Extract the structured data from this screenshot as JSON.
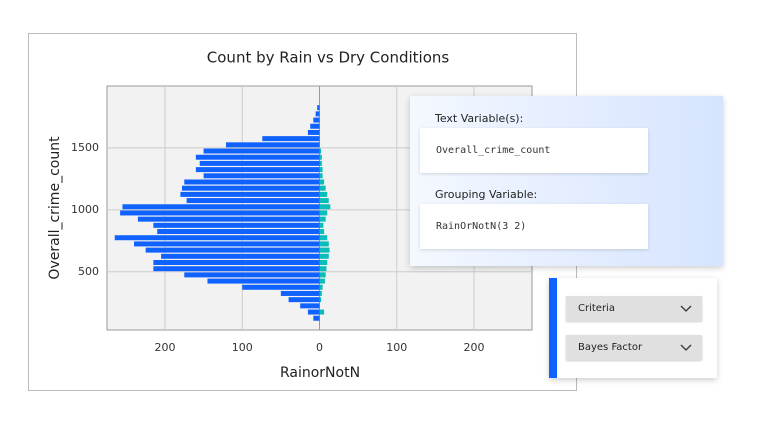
{
  "chart_data": {
    "type": "histogram",
    "title": "Count by Rain vs Dry Conditions",
    "x_label": "RainorNotN",
    "y_label": "Overall_crime_count",
    "bins": [
      100,
      150,
      200,
      250,
      300,
      350,
      400,
      450,
      500,
      550,
      600,
      650,
      700,
      750,
      800,
      850,
      900,
      950,
      1000,
      1050,
      1100,
      1150,
      1200,
      1250,
      1300,
      1350,
      1400,
      1450,
      1500,
      1550,
      1600,
      1650,
      1700,
      1750,
      1800,
      1850
    ],
    "series": [
      {
        "side": "left",
        "color": "#0f62fe",
        "values": [
          8,
          15,
          25,
          40,
          50,
          100,
          145,
          175,
          215,
          215,
          205,
          225,
          240,
          265,
          210,
          215,
          235,
          258,
          255,
          172,
          180,
          178,
          175,
          150,
          160,
          155,
          160,
          150,
          121,
          74,
          15,
          12,
          8,
          5,
          3
        ]
      },
      {
        "side": "right",
        "color": "#08bdba",
        "values": [
          0,
          6,
          0,
          2,
          3,
          4,
          7,
          8,
          9,
          10,
          12,
          13,
          12,
          10,
          6,
          5,
          8,
          10,
          14,
          12,
          10,
          8,
          6,
          4,
          4,
          3,
          3,
          2,
          0,
          0,
          0,
          0,
          0,
          0,
          0
        ]
      }
    ],
    "xlim": [
      -275,
      275
    ],
    "xticks": [
      {
        "value": -200,
        "label": "200"
      },
      {
        "value": -100,
        "label": "100"
      },
      0,
      100,
      200
    ],
    "ylim": [
      30,
      2000
    ],
    "yticks": [
      500,
      1000,
      1500
    ],
    "grid": true
  },
  "text_panel": {
    "text_label": "Text Variable(s):",
    "text_value": "Overall_crime_count",
    "group_label": "Grouping Variable:",
    "group_value": "RainOrNotN(3 2)"
  },
  "options_panel": {
    "criteria": "Criteria",
    "factor": "Bayes Factor"
  }
}
